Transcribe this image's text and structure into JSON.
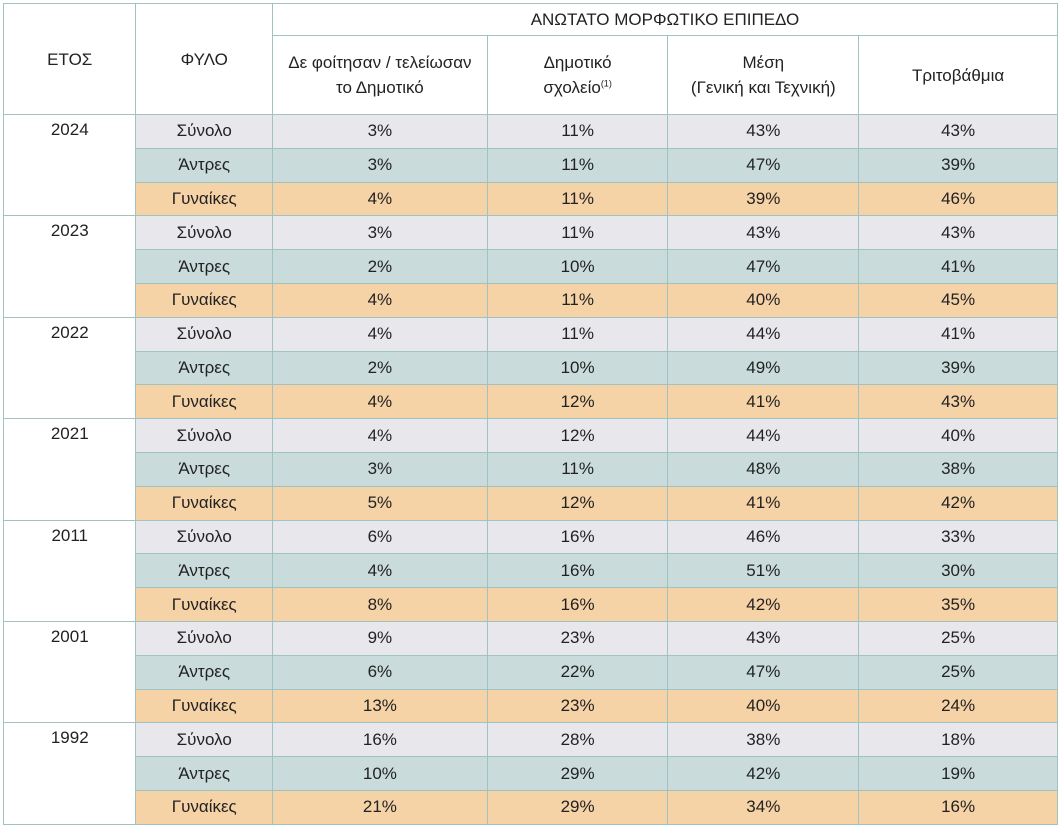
{
  "header": {
    "year_label": "ΕΤΟΣ",
    "sex_label": "ΦΥΛΟ",
    "group_label": "ΑΝΩΤΑΤΟ ΜΟΡΦΩΤΙΚΟ ΕΠΙΠΕΔΟ",
    "col1_line1": "Δε φοίτησαν / τελείωσαν",
    "col1_line2": "το Δημοτικό",
    "col2_line1": "Δημοτικό",
    "col2_line2": "σχολείο",
    "col2_note": "(1)",
    "col3_line1": "Μέση",
    "col3_line2": "(Γενική και Τεχνική)",
    "col4_line1": "Τριτοβάθμια"
  },
  "groups": [
    {
      "year": "2024",
      "rows": [
        {
          "sex": "Σύνολο",
          "values": [
            "3%",
            "11%",
            "43%",
            "43%"
          ]
        },
        {
          "sex": "Άντρες",
          "values": [
            "3%",
            "11%",
            "47%",
            "39%"
          ]
        },
        {
          "sex": "Γυναίκες",
          "values": [
            "4%",
            "11%",
            "39%",
            "46%"
          ]
        }
      ]
    },
    {
      "year": "2023",
      "rows": [
        {
          "sex": "Σύνολο",
          "values": [
            "3%",
            "11%",
            "43%",
            "43%"
          ]
        },
        {
          "sex": "Άντρες",
          "values": [
            "2%",
            "10%",
            "47%",
            "41%"
          ]
        },
        {
          "sex": "Γυναίκες",
          "values": [
            "4%",
            "11%",
            "40%",
            "45%"
          ]
        }
      ]
    },
    {
      "year": "2022",
      "rows": [
        {
          "sex": "Σύνολο",
          "values": [
            "4%",
            "11%",
            "44%",
            "41%"
          ]
        },
        {
          "sex": "Άντρες",
          "values": [
            "2%",
            "10%",
            "49%",
            "39%"
          ]
        },
        {
          "sex": "Γυναίκες",
          "values": [
            "4%",
            "12%",
            "41%",
            "43%"
          ]
        }
      ]
    },
    {
      "year": "2021",
      "rows": [
        {
          "sex": "Σύνολο",
          "values": [
            "4%",
            "12%",
            "44%",
            "40%"
          ]
        },
        {
          "sex": "Άντρες",
          "values": [
            "3%",
            "11%",
            "48%",
            "38%"
          ]
        },
        {
          "sex": "Γυναίκες",
          "values": [
            "5%",
            "12%",
            "41%",
            "42%"
          ]
        }
      ]
    },
    {
      "year": "2011",
      "rows": [
        {
          "sex": "Σύνολο",
          "values": [
            "6%",
            "16%",
            "46%",
            "33%"
          ]
        },
        {
          "sex": "Άντρες",
          "values": [
            "4%",
            "16%",
            "51%",
            "30%"
          ]
        },
        {
          "sex": "Γυναίκες",
          "values": [
            "8%",
            "16%",
            "42%",
            "35%"
          ]
        }
      ]
    },
    {
      "year": "2001",
      "rows": [
        {
          "sex": "Σύνολο",
          "values": [
            "9%",
            "23%",
            "43%",
            "25%"
          ]
        },
        {
          "sex": "Άντρες",
          "values": [
            "6%",
            "22%",
            "47%",
            "25%"
          ]
        },
        {
          "sex": "Γυναίκες",
          "values": [
            "13%",
            "23%",
            "40%",
            "24%"
          ]
        }
      ]
    },
    {
      "year": "1992",
      "rows": [
        {
          "sex": "Σύνολο",
          "values": [
            "16%",
            "28%",
            "38%",
            "18%"
          ]
        },
        {
          "sex": "Άντρες",
          "values": [
            "10%",
            "29%",
            "42%",
            "19%"
          ]
        },
        {
          "sex": "Γυναίκες",
          "values": [
            "21%",
            "29%",
            "34%",
            "16%"
          ]
        }
      ]
    }
  ],
  "colors": {
    "border": "#9fc3c0",
    "total_row": "#e8e8ec",
    "men_row": "#c9dcdb",
    "women_row": "#f6d2a7"
  }
}
